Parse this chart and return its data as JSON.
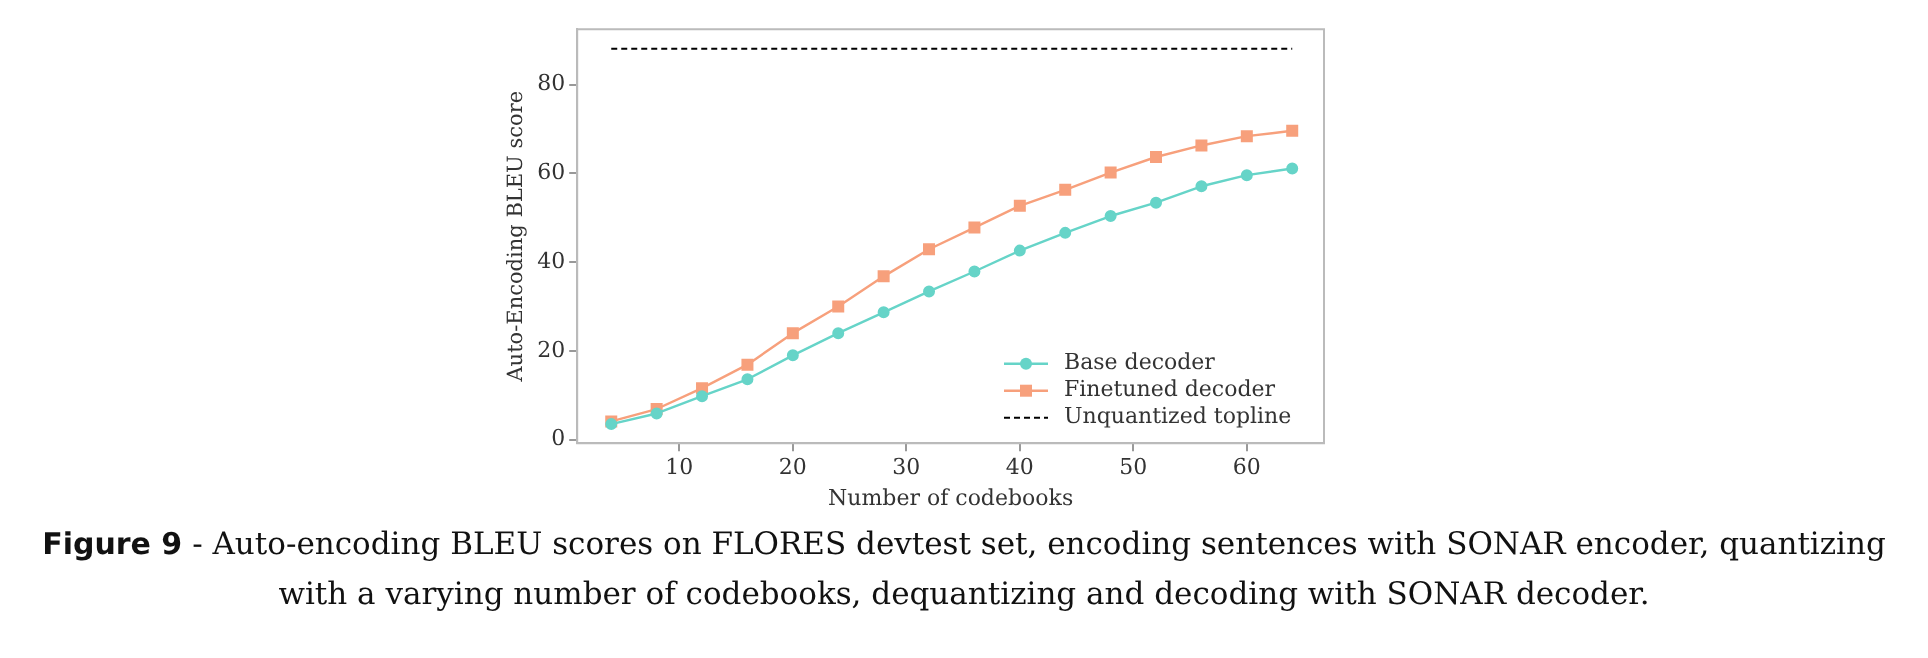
{
  "chart_data": {
    "type": "line",
    "xlabel": "Number of codebooks",
    "ylabel": "Auto-Encoding BLEU score",
    "x": [
      4,
      8,
      12,
      16,
      20,
      24,
      28,
      32,
      36,
      40,
      44,
      48,
      52,
      56,
      60,
      64
    ],
    "series": [
      {
        "name": "Base decoder",
        "color": "#66d4c8",
        "marker": "circle",
        "values": [
          3.5,
          5.9,
          9.8,
          13.6,
          19.0,
          24.0,
          28.7,
          33.4,
          37.9,
          42.6,
          46.6,
          50.4,
          53.4,
          57.1,
          59.6,
          61.1
        ]
      },
      {
        "name": "Finetuned decoder",
        "color": "#f7a07c",
        "marker": "square",
        "values": [
          4.1,
          6.9,
          11.6,
          16.9,
          24.0,
          30.0,
          36.8,
          42.9,
          47.8,
          52.7,
          56.3,
          60.2,
          63.7,
          66.3,
          68.4,
          69.6
        ]
      },
      {
        "name": "Unquantized topline",
        "color": "#000000",
        "marker": "none",
        "line_style": "dashed",
        "x": [
          4,
          64
        ],
        "values": [
          88.1,
          88.1
        ]
      }
    ],
    "xlim": [
      1,
      66.8
    ],
    "xticks": [
      10,
      20,
      30,
      40,
      50,
      60
    ],
    "ylim": [
      -0.8,
      92.5
    ],
    "yticks": [
      0,
      20,
      40,
      60,
      80
    ],
    "grid": false,
    "legend": "bottom right",
    "annotations": [
      "Figure 9",
      "- Auto-encoding BLEU scores on FLORES devtest set, encoding sentences with SONAR encoder, quantizing with a varying number of codebooks, dequantizing and decoding with SONAR decoder."
    ]
  }
}
